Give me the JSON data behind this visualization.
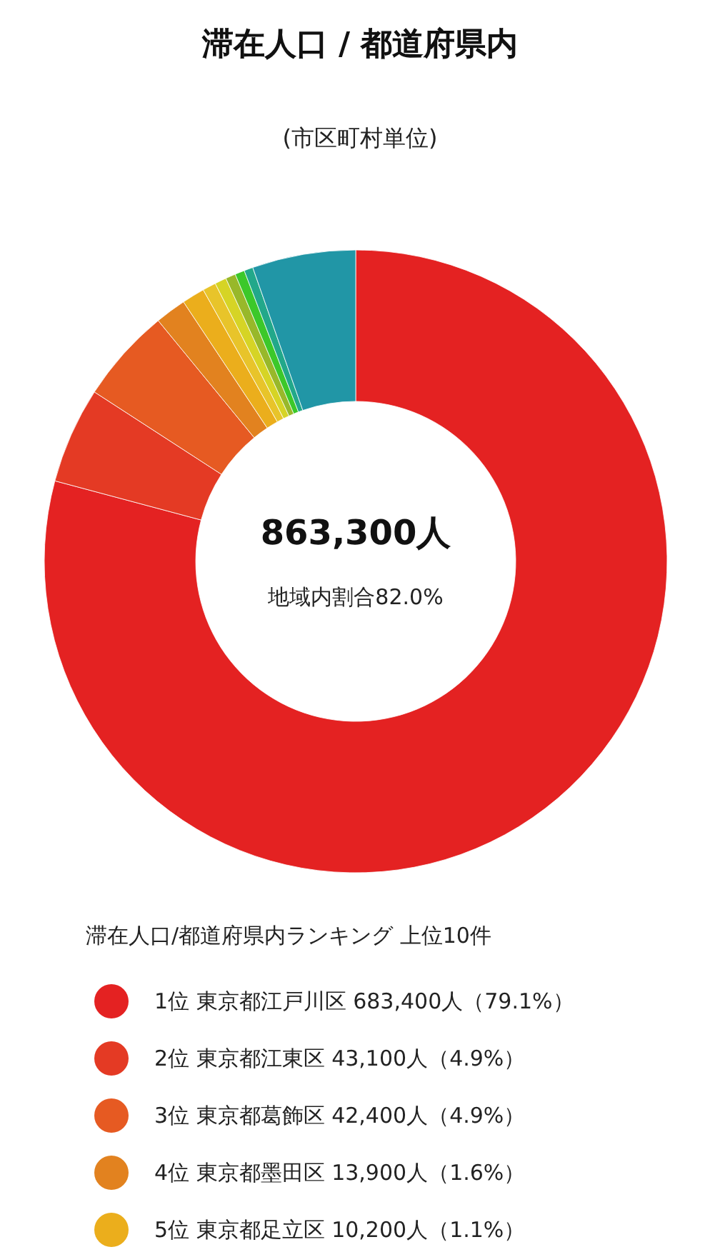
{
  "chart_data": {
    "type": "donut",
    "title": "滞在人口 / 都道府県内",
    "subtitle": "(市区町村単位)",
    "legend_title": "滞在人口/都道府県内ランキング 上位10件",
    "annotations": [
      "863,300人",
      "地域内割合82.0%"
    ],
    "categories": [
      "1位 東京都江戸川区 683,400人（79.1%）",
      "2位 東京都江東区 43,100人（4.9%）",
      "3位 東京都葛飾区 42,400人（4.9%）",
      "4位 東京都墨田区 13,900人（1.6%）",
      "5位 東京都足立区 10,200人（1.1%）",
      null,
      null,
      null,
      null,
      null,
      null
    ],
    "values": [
      683400,
      43100,
      42400,
      13900,
      10200,
      6000,
      5200,
      4500,
      4300,
      4000,
      46300
    ],
    "colors": [
      "#e42222",
      "#e43a24",
      "#e65a22",
      "#e2821f",
      "#ebae1c",
      "#e8c42a",
      "#d6d425",
      "#98b82a",
      "#3cc82a",
      "#22a88a",
      "#2196a6"
    ],
    "legend": "bottom"
  }
}
